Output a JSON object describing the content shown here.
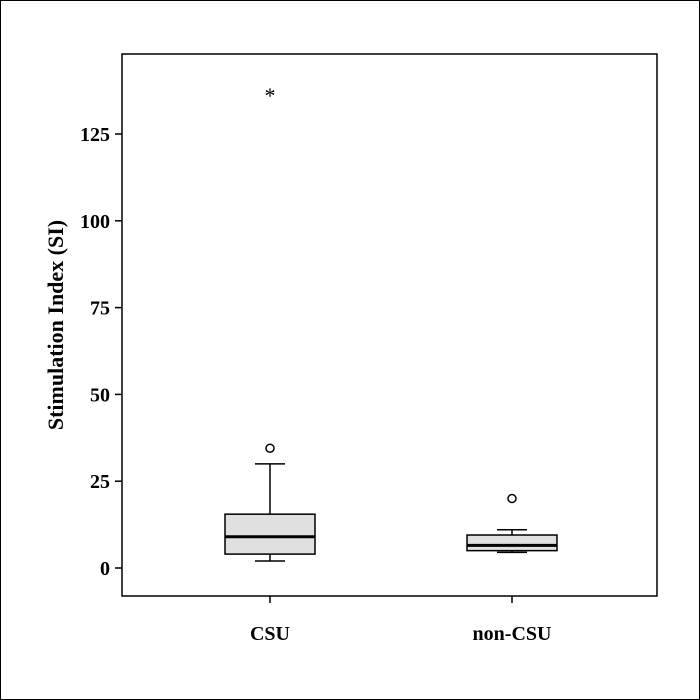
{
  "chart_data": {
    "type": "box",
    "title": "",
    "xlabel": "",
    "ylabel": "Stimulation Index (SI)",
    "ylim": [
      -8,
      150
    ],
    "yticks": [
      0,
      25,
      50,
      75,
      100,
      125
    ],
    "categories": [
      "CSU",
      "non-CSU"
    ],
    "boxes": [
      {
        "category": "CSU",
        "whisker_low": 2,
        "q1": 4,
        "median": 9,
        "q3": 15.5,
        "whisker_high": 30,
        "outliers": [
          34.5
        ],
        "extremes": [
          138
        ]
      },
      {
        "category": "non-CSU",
        "whisker_low": 4.5,
        "q1": 5,
        "median": 6.5,
        "q3": 9.5,
        "whisker_high": 11,
        "outliers": [
          20
        ],
        "extremes": []
      }
    ],
    "box_fill": "#e0e0e0",
    "outlier_marker": "circle",
    "extreme_marker": "*"
  }
}
